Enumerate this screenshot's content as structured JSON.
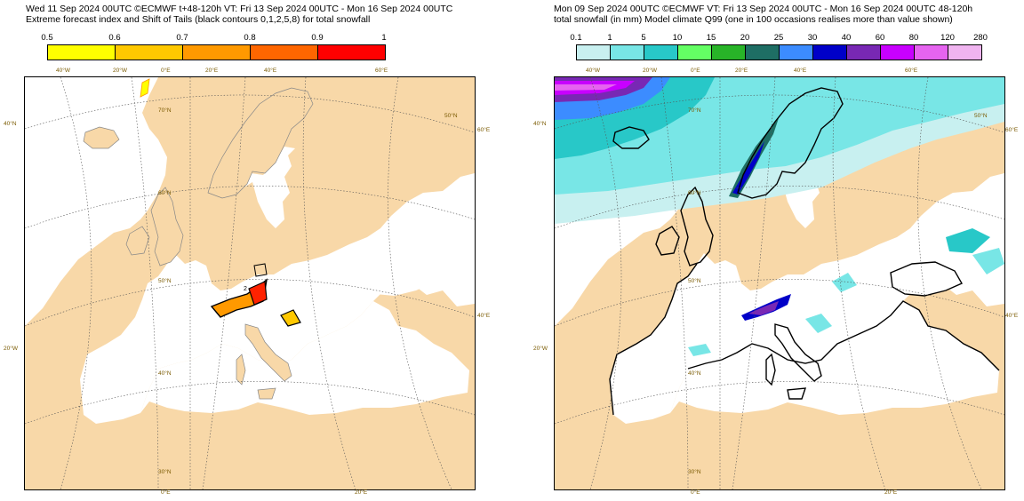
{
  "left_panel": {
    "title_line1": "Wed 11 Sep 2024 00UTC ©ECMWF t+48-120h  VT: Fri 13 Sep 2024 00UTC - Mon 16 Sep 2024 00UTC",
    "title_line2": "Extreme forecast index and Shift of Tails (black contours 0,1,2,5,8) for total snowfall",
    "legend": {
      "labels": [
        "0.5",
        "0.6",
        "0.7",
        "0.8",
        "0.9",
        "1"
      ],
      "colors": [
        "#ffff00",
        "#ffc800",
        "#ff9900",
        "#ff6600",
        "#ff0000"
      ]
    },
    "tick_labels": {
      "top": [
        "40°W",
        "20°W",
        "0°E",
        "20°E",
        "40°E",
        "60°E"
      ],
      "bottom": [
        "0°E",
        "20°E"
      ],
      "left": [
        "40°N",
        "20°W"
      ],
      "right": [
        "60°E",
        "40°E"
      ],
      "inner": [
        "70°N",
        "60°N",
        "50°N",
        "40°N",
        "30°N",
        "50°N"
      ],
      "contour_label": "2"
    }
  },
  "right_panel": {
    "title_line1": "Mon 09 Sep 2024 00UTC ©ECMWF VT: Fri 13 Sep 2024 00UTC - Mon 16 Sep 2024 00UTC  48-120h",
    "title_line2": "total snowfall (in mm)  Model climate Q99 (one in 100 occasions realises more than value shown)",
    "legend": {
      "labels": [
        "0.1",
        "1",
        "5",
        "10",
        "15",
        "20",
        "25",
        "30",
        "40",
        "60",
        "80",
        "120",
        "280"
      ],
      "colors": [
        "#c8f0f0",
        "#78e6e6",
        "#28c8c8",
        "#64ff64",
        "#28b428",
        "#1e6e64",
        "#3c8cff",
        "#0000c8",
        "#7828b4",
        "#c800ff",
        "#e664f0",
        "#f0b4f0"
      ]
    },
    "tick_labels": {
      "top": [
        "40°W",
        "20°W",
        "0°E",
        "20°E",
        "40°E",
        "60°E"
      ],
      "bottom": [
        "0°E",
        "20°E"
      ],
      "left": [
        "40°N",
        "20°W"
      ],
      "right": [
        "60°E",
        "40°E"
      ],
      "inner": [
        "70°N",
        "60°N",
        "50°N",
        "40°N",
        "30°N",
        "50°N"
      ]
    }
  },
  "colors": {
    "land": "#f8d8a8",
    "sea": "#ffffff",
    "tick_text": "#7a5a00"
  }
}
